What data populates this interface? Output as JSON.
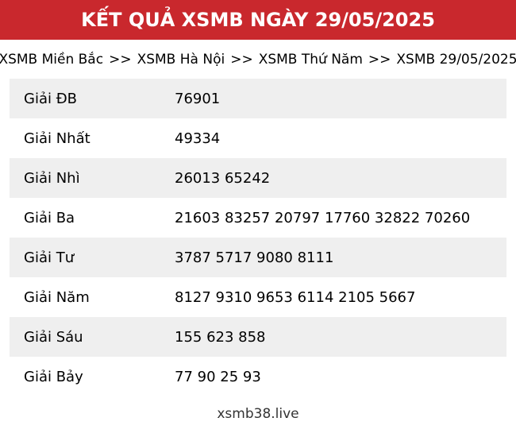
{
  "header": {
    "title": "KẾT QUẢ XSMB NGÀY 29/05/2025"
  },
  "breadcrumb": {
    "separator": ">>",
    "items": [
      "XSMB Miền Bắc",
      "XSMB Hà Nội",
      "XSMB Thứ Năm",
      "XSMB 29/05/2025"
    ]
  },
  "results_table": {
    "rows": [
      {
        "label": "Giải ĐB",
        "numbers": "76901"
      },
      {
        "label": "Giải Nhất",
        "numbers": "49334"
      },
      {
        "label": "Giải Nhì",
        "numbers": "26013 65242"
      },
      {
        "label": "Giải Ba",
        "numbers": "21603 83257 20797 17760 32822 70260"
      },
      {
        "label": "Giải Tư",
        "numbers": "3787 5717 9080 8111"
      },
      {
        "label": "Giải Năm",
        "numbers": "8127 9310 9653 6114 2105 5667"
      },
      {
        "label": "Giải Sáu",
        "numbers": "155 623 858"
      },
      {
        "label": "Giải Bảy",
        "numbers": "77 90 25 93"
      }
    ]
  },
  "footer": {
    "site_name": "xsmb38.live"
  },
  "colors": {
    "header_background": "#C9282D",
    "header_text": "#FFFFFF",
    "row_stripe": "#EFEFEF",
    "body_text": "#000000",
    "footer_text": "#333333"
  }
}
